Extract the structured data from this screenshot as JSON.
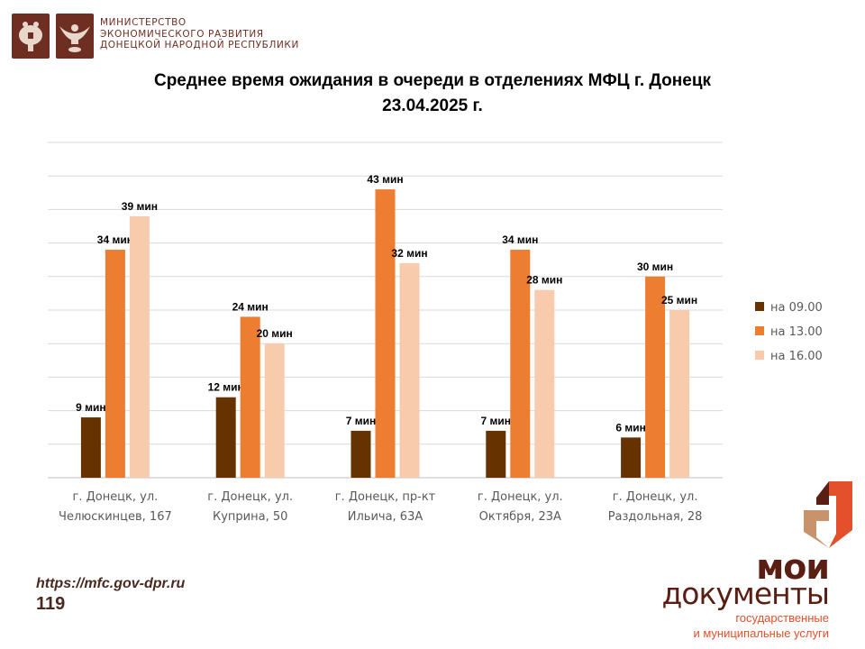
{
  "header": {
    "ministry_lines": [
      "МИНИСТЕРСТВО",
      "ЭКОНОМИЧЕСКОГО РАЗВИТИЯ",
      "ДОНЕЦКОЙ НАРОДНОЙ РЕСПУБЛИКИ"
    ],
    "emblems": [
      "russia-coat-of-arms",
      "dpr-coat-of-arms"
    ]
  },
  "footer": {
    "url": "https://mfc.gov-dpr.ru",
    "page_number": "119",
    "logo_line1": "мои",
    "logo_line2": "документы",
    "logo_sub1": "государственные",
    "logo_sub2": "и муниципальные услуги"
  },
  "chart_data": {
    "type": "bar",
    "title": "Среднее время ожидания в очереди в отделениях МФЦ г. Донецк",
    "subtitle": "23.04.2025 г.",
    "categories": [
      [
        "г. Донецк, ул.",
        "Челюскинцев, 167"
      ],
      [
        "г. Донецк, ул.",
        "Куприна, 50"
      ],
      [
        "г. Донецк, пр-кт",
        "Ильича, 63А"
      ],
      [
        "г. Донецк, ул.",
        "Октября, 23А"
      ],
      [
        "г. Донецк, ул.",
        "Раздольная, 28"
      ]
    ],
    "series": [
      {
        "name": "на 09.00",
        "values": [
          9,
          12,
          7,
          7,
          6
        ],
        "color": "#663300"
      },
      {
        "name": "на 13.00",
        "values": [
          34,
          24,
          43,
          34,
          30
        ],
        "color": "#ed7d31"
      },
      {
        "name": "на 16.00",
        "values": [
          39,
          20,
          32,
          28,
          25
        ],
        "color": "#f8cbad"
      }
    ],
    "data_label_unit": "мин",
    "ylim": [
      0,
      50
    ],
    "ytick_step": 5,
    "grid": true,
    "y_axis_labels_shown": false,
    "legend_position": "right"
  }
}
